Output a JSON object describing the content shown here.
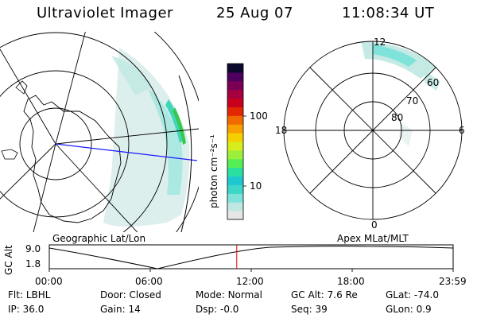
{
  "header": {
    "instrument": "Ultraviolet Imager",
    "date": "25 Aug 07",
    "time": "11:08:34 UT"
  },
  "left_map": {
    "caption": "Geographic Lat/Lon"
  },
  "right_map": {
    "caption": "Apex MLat/MLT",
    "mlt_labels": {
      "top": "12",
      "left": "18",
      "right": "6",
      "bottom": "0"
    },
    "lat_labels": [
      "80",
      "70",
      "60"
    ]
  },
  "colorbar": {
    "unit_label": "photon cm⁻²s⁻¹",
    "tick_labels": [
      "100",
      "10"
    ],
    "colors": [
      "#e6e6e6",
      "#bfe8e2",
      "#7fe3da",
      "#3cd7c8",
      "#1fc8d0",
      "#29e0a0",
      "#55ee55",
      "#9cf03c",
      "#d8ec1e",
      "#f5d000",
      "#f7a000",
      "#f06a00",
      "#e12800",
      "#c8001e",
      "#a50040",
      "#7a0055",
      "#4d0060",
      "#0b0a2a"
    ]
  },
  "altitude_plot": {
    "ylabel": "GC Alt",
    "y_ticks": [
      "9.0",
      "1.8"
    ],
    "x_ticks": [
      "00:00",
      "06:00",
      "12:00",
      "18:00",
      "23:59"
    ],
    "current_marker_hours": 11.14
  },
  "status": {
    "row1": [
      {
        "key": "Flt:",
        "value": "LBHL"
      },
      {
        "key": "Door:",
        "value": "Closed"
      },
      {
        "key": "Mode:",
        "value": "Normal"
      },
      {
        "key": "GC Alt:",
        "value": "7.6 Re"
      },
      {
        "key": "GLat:",
        "value": "-74.0"
      }
    ],
    "row2": [
      {
        "key": "IP:",
        "value": "36.0"
      },
      {
        "key": "Gain:",
        "value": "14"
      },
      {
        "key": "Dsp:",
        "value": "-0.0"
      },
      {
        "key": "Seq:",
        "value": "39"
      },
      {
        "key": "GLon:",
        "value": "0.9"
      }
    ]
  }
}
